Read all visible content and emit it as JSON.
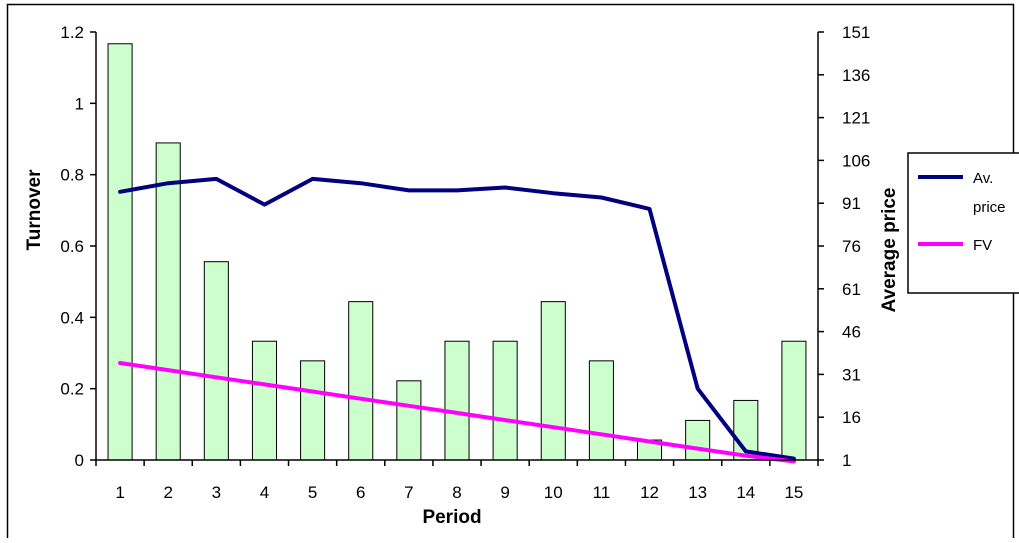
{
  "chart_data": {
    "type": "bar",
    "xlabel": "Period",
    "ylabel": "Turnover",
    "y2label": "Average price",
    "categories": [
      "1",
      "2",
      "3",
      "4",
      "5",
      "6",
      "7",
      "8",
      "9",
      "10",
      "11",
      "12",
      "13",
      "14",
      "15"
    ],
    "ylim": [
      0,
      1.2
    ],
    "yticks": [
      "0",
      "0.2",
      "0.4",
      "0.6",
      "0.8",
      "1",
      "1.2"
    ],
    "y2lim": [
      1,
      151
    ],
    "y2ticks": [
      "1",
      "16",
      "31",
      "46",
      "61",
      "76",
      "91",
      "106",
      "121",
      "136",
      "151"
    ],
    "grid": false,
    "legend_position": "right",
    "series": [
      {
        "name": "",
        "type": "bar",
        "axis": "left",
        "color": "#ccffcc",
        "values": [
          1.167,
          0.889,
          0.556,
          0.333,
          0.278,
          0.444,
          0.222,
          0.333,
          0.333,
          0.444,
          0.278,
          0.056,
          0.111,
          0.167,
          0.333
        ]
      },
      {
        "name": "Av. price",
        "type": "line",
        "axis": "right",
        "color": "#000080",
        "values": [
          95,
          98,
          99.5,
          90.5,
          99.5,
          98,
          95.5,
          95.5,
          96.5,
          94.5,
          93,
          89,
          26,
          4,
          1.5
        ]
      },
      {
        "name": "FV",
        "type": "line",
        "axis": "right",
        "color": "#ff00ff",
        "values": [
          35,
          32.5,
          30,
          27.5,
          25,
          22.5,
          20,
          17.5,
          15,
          12.5,
          10,
          7.5,
          5,
          2.5,
          0.5
        ]
      }
    ]
  },
  "legend": {
    "items": [
      {
        "label_line1": "Av.",
        "label_line2": "price",
        "color": "#000080"
      },
      {
        "label_line1": "FV",
        "label_line2": "",
        "color": "#ff00ff"
      }
    ]
  }
}
